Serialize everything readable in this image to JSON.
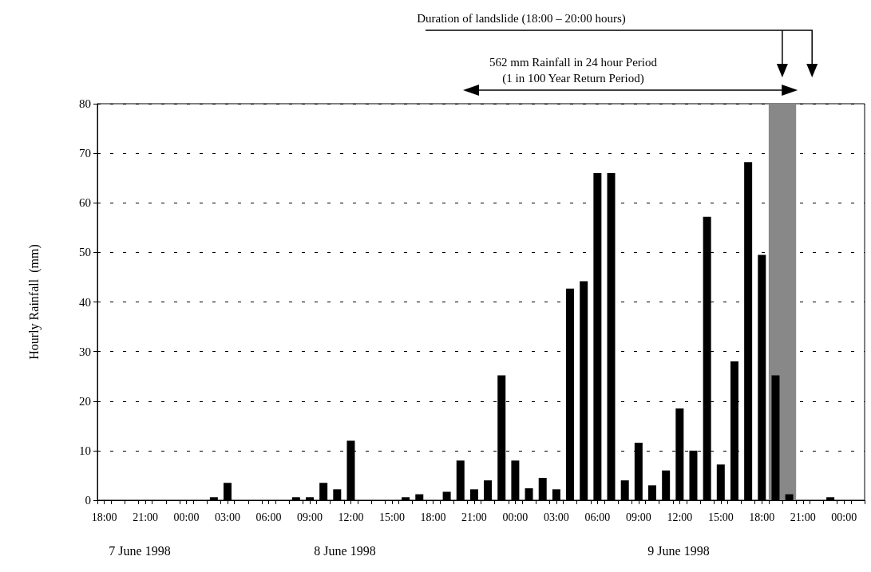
{
  "chart_data": {
    "type": "bar",
    "ylabel": "Hourly Rainfall  (mm)",
    "x": [
      "1998-06-07T18:00",
      "1998-06-07T19:00",
      "1998-06-07T20:00",
      "1998-06-07T21:00",
      "1998-06-07T22:00",
      "1998-06-07T23:00",
      "1998-06-08T00:00",
      "1998-06-08T01:00",
      "1998-06-08T02:00",
      "1998-06-08T03:00",
      "1998-06-08T04:00",
      "1998-06-08T05:00",
      "1998-06-08T06:00",
      "1998-06-08T07:00",
      "1998-06-08T08:00",
      "1998-06-08T09:00",
      "1998-06-08T10:00",
      "1998-06-08T11:00",
      "1998-06-08T12:00",
      "1998-06-08T13:00",
      "1998-06-08T14:00",
      "1998-06-08T15:00",
      "1998-06-08T16:00",
      "1998-06-08T17:00",
      "1998-06-08T18:00",
      "1998-06-08T19:00",
      "1998-06-08T20:00",
      "1998-06-08T21:00",
      "1998-06-08T22:00",
      "1998-06-08T23:00",
      "1998-06-09T00:00",
      "1998-06-09T01:00",
      "1998-06-09T02:00",
      "1998-06-09T03:00",
      "1998-06-09T04:00",
      "1998-06-09T05:00",
      "1998-06-09T06:00",
      "1998-06-09T07:00",
      "1998-06-09T08:00",
      "1998-06-09T09:00",
      "1998-06-09T10:00",
      "1998-06-09T11:00",
      "1998-06-09T12:00",
      "1998-06-09T13:00",
      "1998-06-09T14:00",
      "1998-06-09T15:00",
      "1998-06-09T16:00",
      "1998-06-09T17:00",
      "1998-06-09T18:00",
      "1998-06-09T19:00",
      "1998-06-09T20:00",
      "1998-06-09T21:00",
      "1998-06-09T22:00",
      "1998-06-09T23:00",
      "1998-06-10T00:00",
      "1998-06-10T01:00"
    ],
    "values": [
      0,
      0,
      0,
      0,
      0,
      0,
      0,
      0,
      0.6,
      3.5,
      0,
      0,
      0,
      0,
      0.6,
      0.6,
      3.5,
      2.2,
      12,
      0,
      0,
      0,
      0.6,
      1.2,
      0,
      1.7,
      8,
      2.2,
      4,
      25.2,
      8,
      2.4,
      4.5,
      2.2,
      42.7,
      44.2,
      66,
      66,
      4,
      11.6,
      3,
      6,
      18.5,
      10,
      57.2,
      7.2,
      28,
      68.2,
      49.5,
      25.2,
      1.2,
      0,
      0,
      0.6,
      0,
      0
    ],
    "color": "#000000",
    "xlim": [
      "1998-06-07T17:30",
      "1998-06-10T01:30"
    ],
    "xticks": [
      {
        "value": "1998-06-07T18:00",
        "label": "18:00"
      },
      {
        "value": "1998-06-07T21:00",
        "label": "21:00"
      },
      {
        "value": "1998-06-08T00:00",
        "label": "00:00"
      },
      {
        "value": "1998-06-08T03:00",
        "label": "03:00"
      },
      {
        "value": "1998-06-08T06:00",
        "label": "06:00"
      },
      {
        "value": "1998-06-08T09:00",
        "label": "09:00"
      },
      {
        "value": "1998-06-08T12:00",
        "label": "12:00"
      },
      {
        "value": "1998-06-08T15:00",
        "label": "15:00"
      },
      {
        "value": "1998-06-08T18:00",
        "label": "18:00"
      },
      {
        "value": "1998-06-08T21:00",
        "label": "21:00"
      },
      {
        "value": "1998-06-09T00:00",
        "label": "00:00"
      },
      {
        "value": "1998-06-09T03:00",
        "label": "03:00"
      },
      {
        "value": "1998-06-09T06:00",
        "label": "06:00"
      },
      {
        "value": "1998-06-09T09:00",
        "label": "09:00"
      },
      {
        "value": "1998-06-09T12:00",
        "label": "12:00"
      },
      {
        "value": "1998-06-09T15:00",
        "label": "15:00"
      },
      {
        "value": "1998-06-09T18:00",
        "label": "18:00"
      },
      {
        "value": "1998-06-09T21:00",
        "label": "21:00"
      },
      {
        "value": "1998-06-10T00:00",
        "label": "00:00"
      },
      {
        "value": "1998-06-07T17:30",
        "label": null
      },
      {
        "value": "1998-06-07T18:30",
        "label": null
      },
      {
        "value": "1998-06-07T19:30",
        "label": null
      },
      {
        "value": "1998-06-07T20:30",
        "label": null
      },
      {
        "value": "1998-06-07T21:30",
        "label": null
      },
      {
        "value": "1998-06-07T22:30",
        "label": null
      },
      {
        "value": "1998-06-07T23:30",
        "label": null
      },
      {
        "value": "1998-06-08T00:30",
        "label": null
      },
      {
        "value": "1998-06-08T01:30",
        "label": null
      },
      {
        "value": "1998-06-08T02:30",
        "label": null
      },
      {
        "value": "1998-06-08T03:30",
        "label": null
      },
      {
        "value": "1998-06-08T04:30",
        "label": null
      },
      {
        "value": "1998-06-08T05:30",
        "label": null
      },
      {
        "value": "1998-06-08T06:30",
        "label": null
      },
      {
        "value": "1998-06-08T07:30",
        "label": null
      },
      {
        "value": "1998-06-08T08:30",
        "label": null
      },
      {
        "value": "1998-06-08T09:30",
        "label": null
      },
      {
        "value": "1998-06-08T10:30",
        "label": null
      },
      {
        "value": "1998-06-08T11:30",
        "label": null
      },
      {
        "value": "1998-06-08T12:30",
        "label": null
      },
      {
        "value": "1998-06-08T13:30",
        "label": null
      },
      {
        "value": "1998-06-08T14:30",
        "label": null
      },
      {
        "value": "1998-06-08T15:30",
        "label": null
      },
      {
        "value": "1998-06-08T16:30",
        "label": null
      },
      {
        "value": "1998-06-08T17:30",
        "label": null
      },
      {
        "value": "1998-06-08T18:30",
        "label": null
      },
      {
        "value": "1998-06-08T19:30",
        "label": null
      },
      {
        "value": "1998-06-08T20:30",
        "label": null
      },
      {
        "value": "1998-06-08T21:30",
        "label": null
      },
      {
        "value": "1998-06-08T22:30",
        "label": null
      },
      {
        "value": "1998-06-08T23:30",
        "label": null
      },
      {
        "value": "1998-06-09T00:30",
        "label": null
      },
      {
        "value": "1998-06-09T01:30",
        "label": null
      },
      {
        "value": "1998-06-09T02:30",
        "label": null
      },
      {
        "value": "1998-06-09T03:30",
        "label": null
      },
      {
        "value": "1998-06-09T04:30",
        "label": null
      },
      {
        "value": "1998-06-09T05:30",
        "label": null
      },
      {
        "value": "1998-06-09T06:30",
        "label": null
      },
      {
        "value": "1998-06-09T07:30",
        "label": null
      },
      {
        "value": "1998-06-09T08:30",
        "label": null
      },
      {
        "value": "1998-06-09T09:30",
        "label": null
      },
      {
        "value": "1998-06-09T10:30",
        "label": null
      },
      {
        "value": "1998-06-09T11:30",
        "label": null
      },
      {
        "value": "1998-06-09T12:30",
        "label": null
      },
      {
        "value": "1998-06-09T13:30",
        "label": null
      },
      {
        "value": "1998-06-09T14:30",
        "label": null
      },
      {
        "value": "1998-06-09T15:30",
        "label": null
      },
      {
        "value": "1998-06-09T16:30",
        "label": null
      },
      {
        "value": "1998-06-09T17:30",
        "label": null
      },
      {
        "value": "1998-06-09T18:30",
        "label": null
      },
      {
        "value": "1998-06-09T19:30",
        "label": null
      },
      {
        "value": "1998-06-09T20:30",
        "label": null
      },
      {
        "value": "1998-06-09T21:30",
        "label": null
      },
      {
        "value": "1998-06-09T22:30",
        "label": null
      },
      {
        "value": "1998-06-09T23:30",
        "label": null
      },
      {
        "value": "1998-06-10T00:30",
        "label": null
      },
      {
        "value": "1998-06-10T01:30",
        "label": null
      }
    ],
    "ylim": [
      0,
      80
    ],
    "yticks": [
      0,
      10,
      20,
      30,
      40,
      50,
      60,
      70,
      80
    ],
    "grid": "y",
    "bands": [
      {
        "axis": "x",
        "from": "1998-06-09T18:30",
        "to": "1998-06-09T20:30",
        "color": "#888888"
      }
    ],
    "annotations": [
      "Duration of landslide (18:00 – 20:00 hours)",
      "562 mm Rainfall in 24 hour Period\n(1 in 100 Year Return Period)",
      "7 June 1998",
      "8 June 1998",
      "9 June 1998"
    ]
  }
}
